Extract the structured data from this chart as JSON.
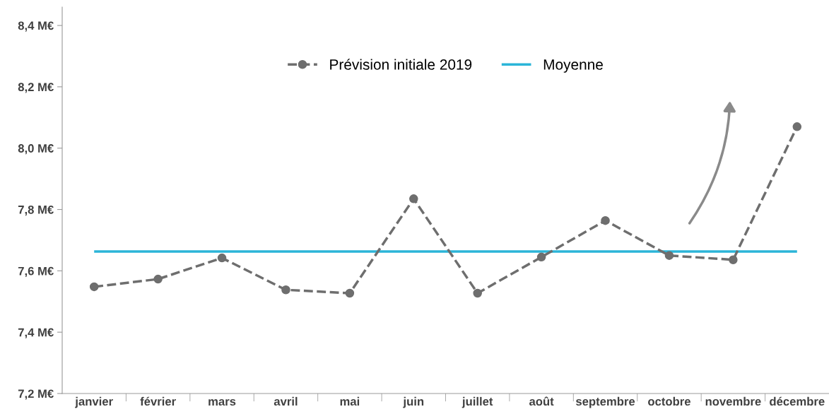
{
  "chart_data": {
    "type": "line",
    "categories": [
      "janvier",
      "février",
      "mars",
      "avril",
      "mai",
      "juin",
      "juillet",
      "août",
      "septembre",
      "octobre",
      "novembre",
      "décembre"
    ],
    "series": [
      {
        "name": "Prévision initiale 2019",
        "color": "#6e6e6e",
        "values": [
          7.548,
          7.573,
          7.642,
          7.538,
          7.527,
          7.835,
          7.527,
          7.645,
          7.764,
          7.65,
          7.636,
          8.07
        ]
      }
    ],
    "ref_lines": [
      {
        "axis": "y",
        "value": 7.663,
        "label": "Moyenne",
        "color": "#2bb5d8",
        "line_style": "solid"
      }
    ],
    "ylim": [
      7.2,
      8.46
    ],
    "yticks": [
      {
        "value": 7.2,
        "label": "7,2 M€"
      },
      {
        "value": 7.4,
        "label": "7,4 M€"
      },
      {
        "value": 7.6,
        "label": "7,6 M€"
      },
      {
        "value": 7.8,
        "label": "7,8 M€"
      },
      {
        "value": 8.0,
        "label": "8,0 M€"
      },
      {
        "value": 8.2,
        "label": "8,2 M€"
      },
      {
        "value": 8.4,
        "label": "8,4 M€"
      }
    ],
    "grid": false,
    "legend": "top",
    "marker": "circle",
    "line_style": "dashed"
  }
}
